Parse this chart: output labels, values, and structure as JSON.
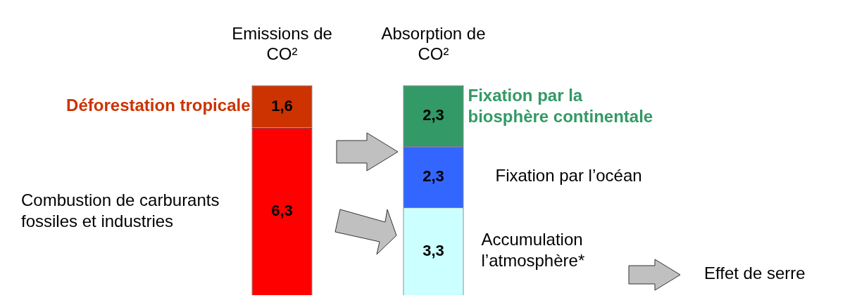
{
  "chart_data": {
    "type": "bar",
    "stacked": true,
    "categories": [
      "Emissions de CO²",
      "Absorption de CO²"
    ],
    "series": [
      {
        "name": "Combustion de carburants fossiles et industries",
        "color": "#ff0000",
        "values": [
          6.3,
          null
        ],
        "value_labels": [
          "6,3",
          null
        ]
      },
      {
        "name": "Déforestation tropicale",
        "color": "#cc3300",
        "values": [
          1.6,
          null
        ],
        "value_labels": [
          "1,6",
          null
        ]
      },
      {
        "name": "Accumulation l’atmosphère*",
        "color": "#ccffff",
        "values": [
          null,
          3.3
        ],
        "value_labels": [
          null,
          "3,3"
        ]
      },
      {
        "name": "Fixation par l’océan",
        "color": "#3366ff",
        "values": [
          null,
          2.3
        ],
        "value_labels": [
          null,
          "2,3"
        ]
      },
      {
        "name": "Fixation par la biosphère continentale",
        "color": "#339966",
        "values": [
          null,
          2.3
        ],
        "value_labels": [
          null,
          "2,3"
        ]
      }
    ],
    "annotations": [
      "Effet de serre"
    ],
    "tick_labels": "x",
    "grid": false,
    "legend": false
  }
}
